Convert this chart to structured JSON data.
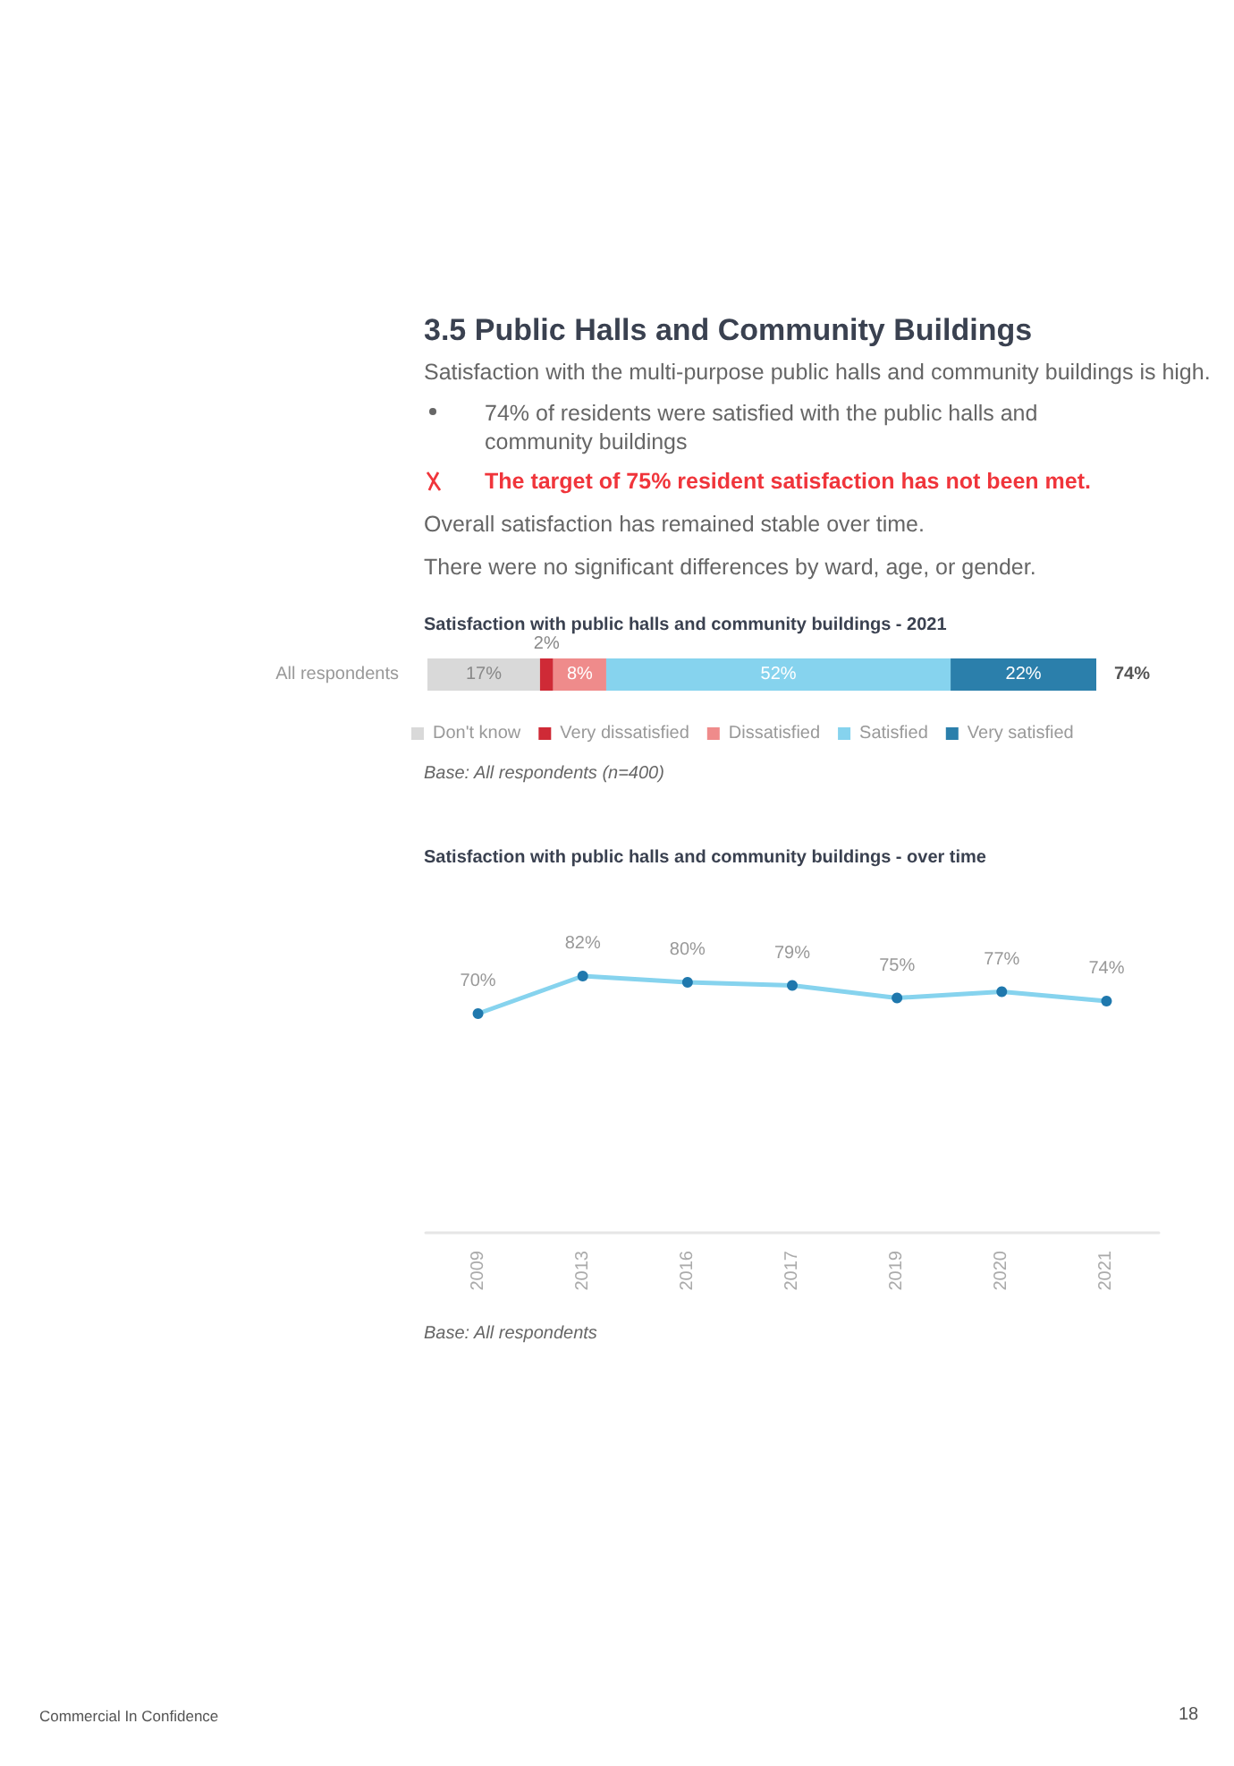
{
  "chart_data": [
    {
      "type": "bar",
      "orientation": "horizontal",
      "stacked": true,
      "title": "Satisfaction with public halls and community buildings - 2021",
      "annotations": [
        "3.5 Public Halls and Community Buildings",
        "Satisfaction with the multi-purpose public halls and community buildings is high.",
        "74% of residents were satisfied with the public halls and community buildings",
        "The target of 75% resident satisfaction has not been met.",
        "Overall satisfaction has remained stable over time.",
        "There were no significant differences by ward, age, or gender.",
        "Base: All respondents (n=400)",
        {
          "text": "74%",
          "x": 101,
          "y": "All respondents"
        }
      ],
      "categories": [
        "All respondents"
      ],
      "series": [
        {
          "name": "Don't know",
          "color": "#d9d9d9",
          "values": [
            17
          ],
          "value_labels": [
            "17%"
          ]
        },
        {
          "name": "Very dissatisfied",
          "color": "#cf2a36",
          "values": [
            2
          ],
          "value_labels": [
            "2%"
          ]
        },
        {
          "name": "Dissatisfied",
          "color": "#ef8b8b",
          "values": [
            8
          ],
          "value_labels": [
            "8%"
          ]
        },
        {
          "name": "Satisfied",
          "color": "#86d3ee",
          "values": [
            52
          ],
          "value_labels": [
            "52%"
          ]
        },
        {
          "name": "Very satisfied",
          "color": "#2b7fab",
          "values": [
            22
          ],
          "value_labels": [
            "22%"
          ]
        }
      ],
      "tick_labels": "y",
      "legend": "bottom",
      "grid": false
    },
    {
      "type": "line",
      "title": "Satisfaction with public halls and community buildings - over time",
      "annotations": [
        "Base: All respondents",
        "Commercial In Confidence",
        "18"
      ],
      "categories": [
        "2009",
        "2013",
        "2016",
        "2017",
        "2019",
        "2020",
        "2021"
      ],
      "series": [
        {
          "color": "#86d3ee",
          "colors": [
            "#1f78ad",
            "#1f78ad",
            "#1f78ad",
            "#1f78ad",
            "#1f78ad",
            "#1f78ad",
            "#1f78ad"
          ],
          "values": [
            70,
            82,
            80,
            79,
            75,
            77,
            74
          ],
          "value_labels": [
            "70%",
            "82%",
            "80%",
            "79%",
            "75%",
            "77%",
            "74%"
          ]
        }
      ],
      "tick_labels": "x",
      "marker": "circle",
      "line_style": "solid",
      "grid": false
    }
  ]
}
